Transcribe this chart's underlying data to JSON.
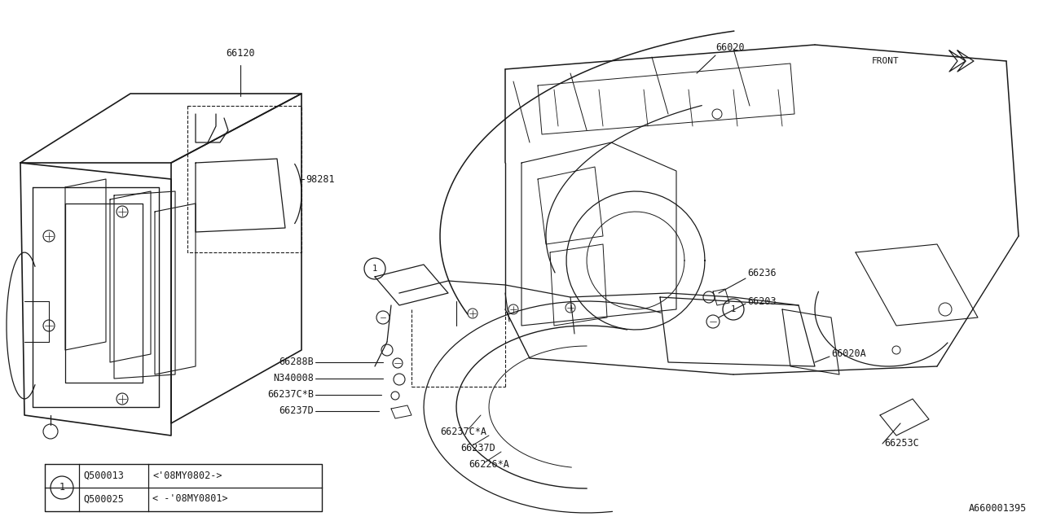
{
  "bg_color": "#ffffff",
  "line_color": "#1a1a1a",
  "diagram_id": "A660001395",
  "table": {
    "rows": [
      [
        "Q500025",
        "< -‘08MY0801>"
      ],
      [
        "Q500013",
        "<‘08MY0802->"
      ]
    ]
  }
}
